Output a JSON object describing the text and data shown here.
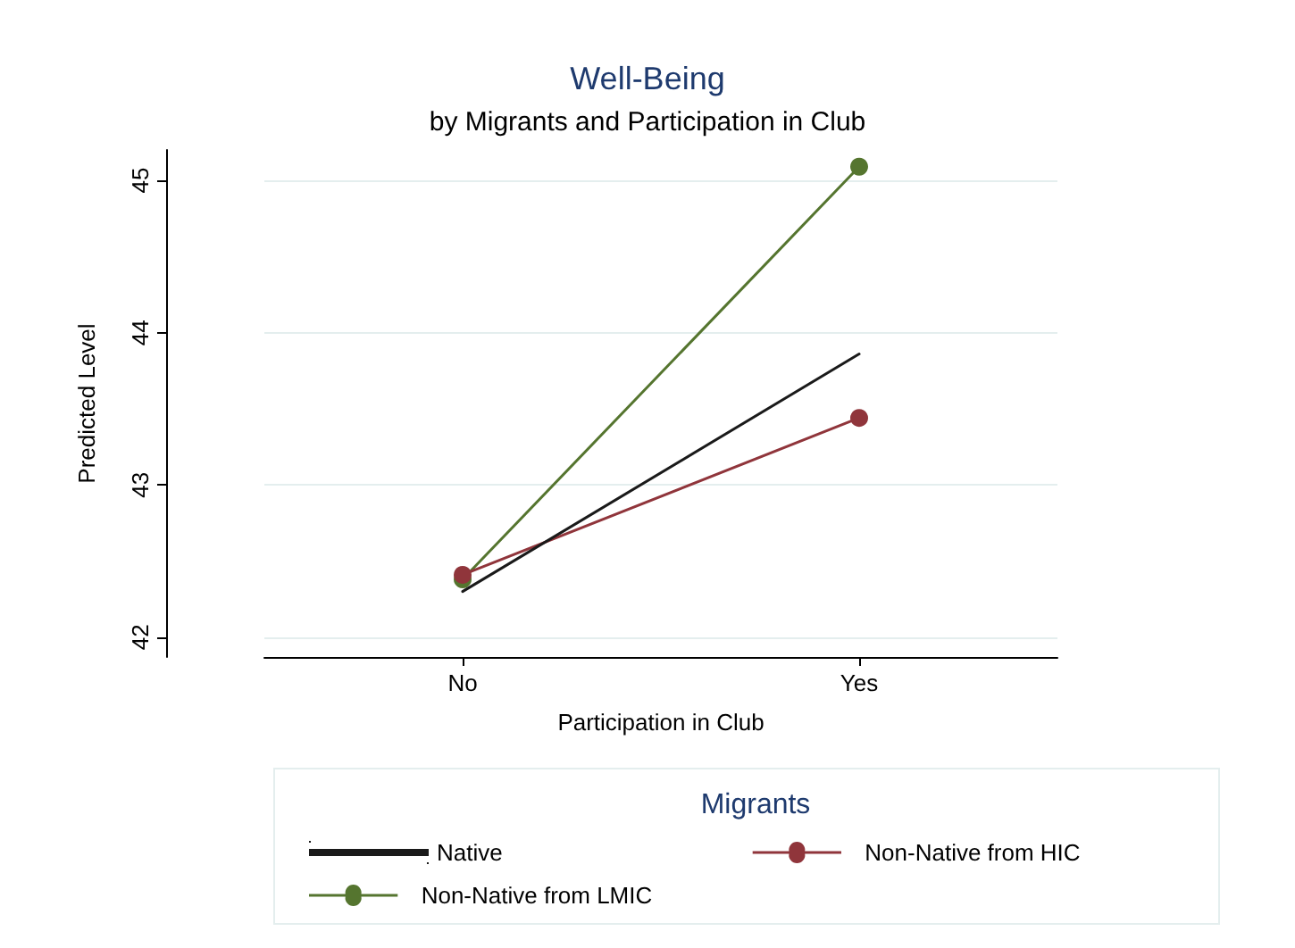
{
  "chart_data": {
    "type": "line",
    "title": "Well-Being",
    "subtitle": "by Migrants and Participation in Club",
    "xlabel": "Participation in Club",
    "ylabel": "Predicted Level",
    "legend_title": "Migrants",
    "categories": [
      "No",
      "Yes"
    ],
    "series": [
      {
        "name": "Native",
        "color": "#1a1a1a",
        "values": [
          42.3,
          43.86
        ],
        "marker": "none"
      },
      {
        "name": "Non-Native from HIC",
        "color": "#90353b",
        "values": [
          42.41,
          43.44
        ],
        "marker": "circle"
      },
      {
        "name": "Non-Native from LMIC",
        "color": "#55752f",
        "values": [
          42.38,
          45.09
        ],
        "marker": "circle"
      }
    ],
    "ylim": [
      41.87,
      45.2
    ],
    "yticks": [
      42,
      43,
      44,
      45
    ],
    "grid": "y",
    "legend": "bottom"
  }
}
